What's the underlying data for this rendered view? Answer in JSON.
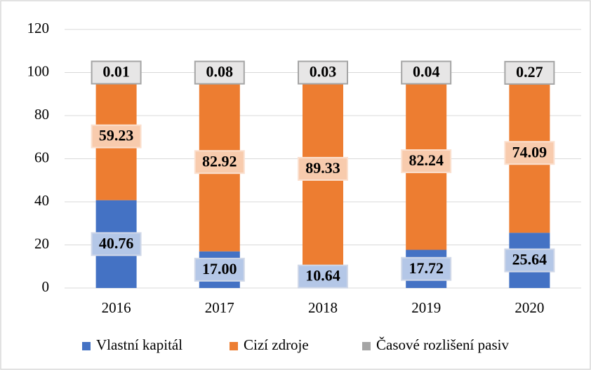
{
  "chart_data": {
    "type": "stacked_bar",
    "categories": [
      "2016",
      "2017",
      "2018",
      "2019",
      "2020"
    ],
    "series": [
      {
        "name": "Vlastní kapitál",
        "color": "#4472c4",
        "values": [
          40.76,
          17.0,
          10.64,
          17.72,
          25.64
        ],
        "value_labels": [
          "40.76",
          "17.00",
          "10.64",
          "17.72",
          "25.64"
        ]
      },
      {
        "name": "Cizí zdroje",
        "color": "#ed7d31",
        "values": [
          59.23,
          82.92,
          89.33,
          82.24,
          74.09
        ],
        "value_labels": [
          "59.23",
          "82.92",
          "89.33",
          "82.24",
          "74.09"
        ]
      },
      {
        "name": "Časové rozlišení pasiv",
        "color": "#a5a5a5",
        "values": [
          0.01,
          0.08,
          0.03,
          0.04,
          0.27
        ],
        "value_labels": [
          "0.01",
          "0.08",
          "0.03",
          "0.04",
          "0.27"
        ]
      }
    ],
    "ylim": [
      0,
      120
    ],
    "yticks": [
      0,
      20,
      40,
      60,
      80,
      100,
      120
    ],
    "grid": true,
    "legend": "bottom"
  }
}
